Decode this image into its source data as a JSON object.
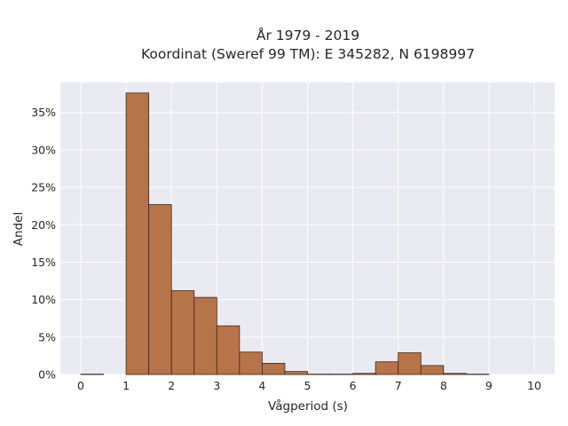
{
  "chart_data": {
    "type": "bar",
    "title": "År 1979 - 2019",
    "subtitle": "Koordinat (Sweref 99 TM): E 345282, N 6198997",
    "xlabel": "Vågperiod (s)",
    "ylabel": "Andel",
    "bin_width": 0.5,
    "bins": [
      {
        "x0": 0.0,
        "value": 0.05
      },
      {
        "x0": 0.5,
        "value": 0.0
      },
      {
        "x0": 1.0,
        "value": 37.6
      },
      {
        "x0": 1.5,
        "value": 22.7
      },
      {
        "x0": 2.0,
        "value": 11.2
      },
      {
        "x0": 2.5,
        "value": 10.3
      },
      {
        "x0": 3.0,
        "value": 6.5
      },
      {
        "x0": 3.5,
        "value": 3.0
      },
      {
        "x0": 4.0,
        "value": 1.5
      },
      {
        "x0": 4.5,
        "value": 0.4
      },
      {
        "x0": 5.0,
        "value": 0.05
      },
      {
        "x0": 5.5,
        "value": 0.05
      },
      {
        "x0": 6.0,
        "value": 0.15
      },
      {
        "x0": 6.5,
        "value": 1.7
      },
      {
        "x0": 7.0,
        "value": 2.9
      },
      {
        "x0": 7.5,
        "value": 1.2
      },
      {
        "x0": 8.0,
        "value": 0.15
      },
      {
        "x0": 8.5,
        "value": 0.05
      }
    ],
    "xlim": [
      -0.45,
      10.45
    ],
    "ylim": [
      0,
      39
    ],
    "xticks": [
      0,
      1,
      2,
      3,
      4,
      5,
      6,
      7,
      8,
      9,
      10
    ],
    "yticks": [
      0,
      5,
      10,
      15,
      20,
      25,
      30,
      35
    ],
    "ytick_suffix": "%",
    "grid": true,
    "colors": {
      "bar": "#b87449",
      "bar_edge": "#3a2618",
      "plot_bg": "#eaeaf2",
      "grid": "#ffffff"
    }
  }
}
